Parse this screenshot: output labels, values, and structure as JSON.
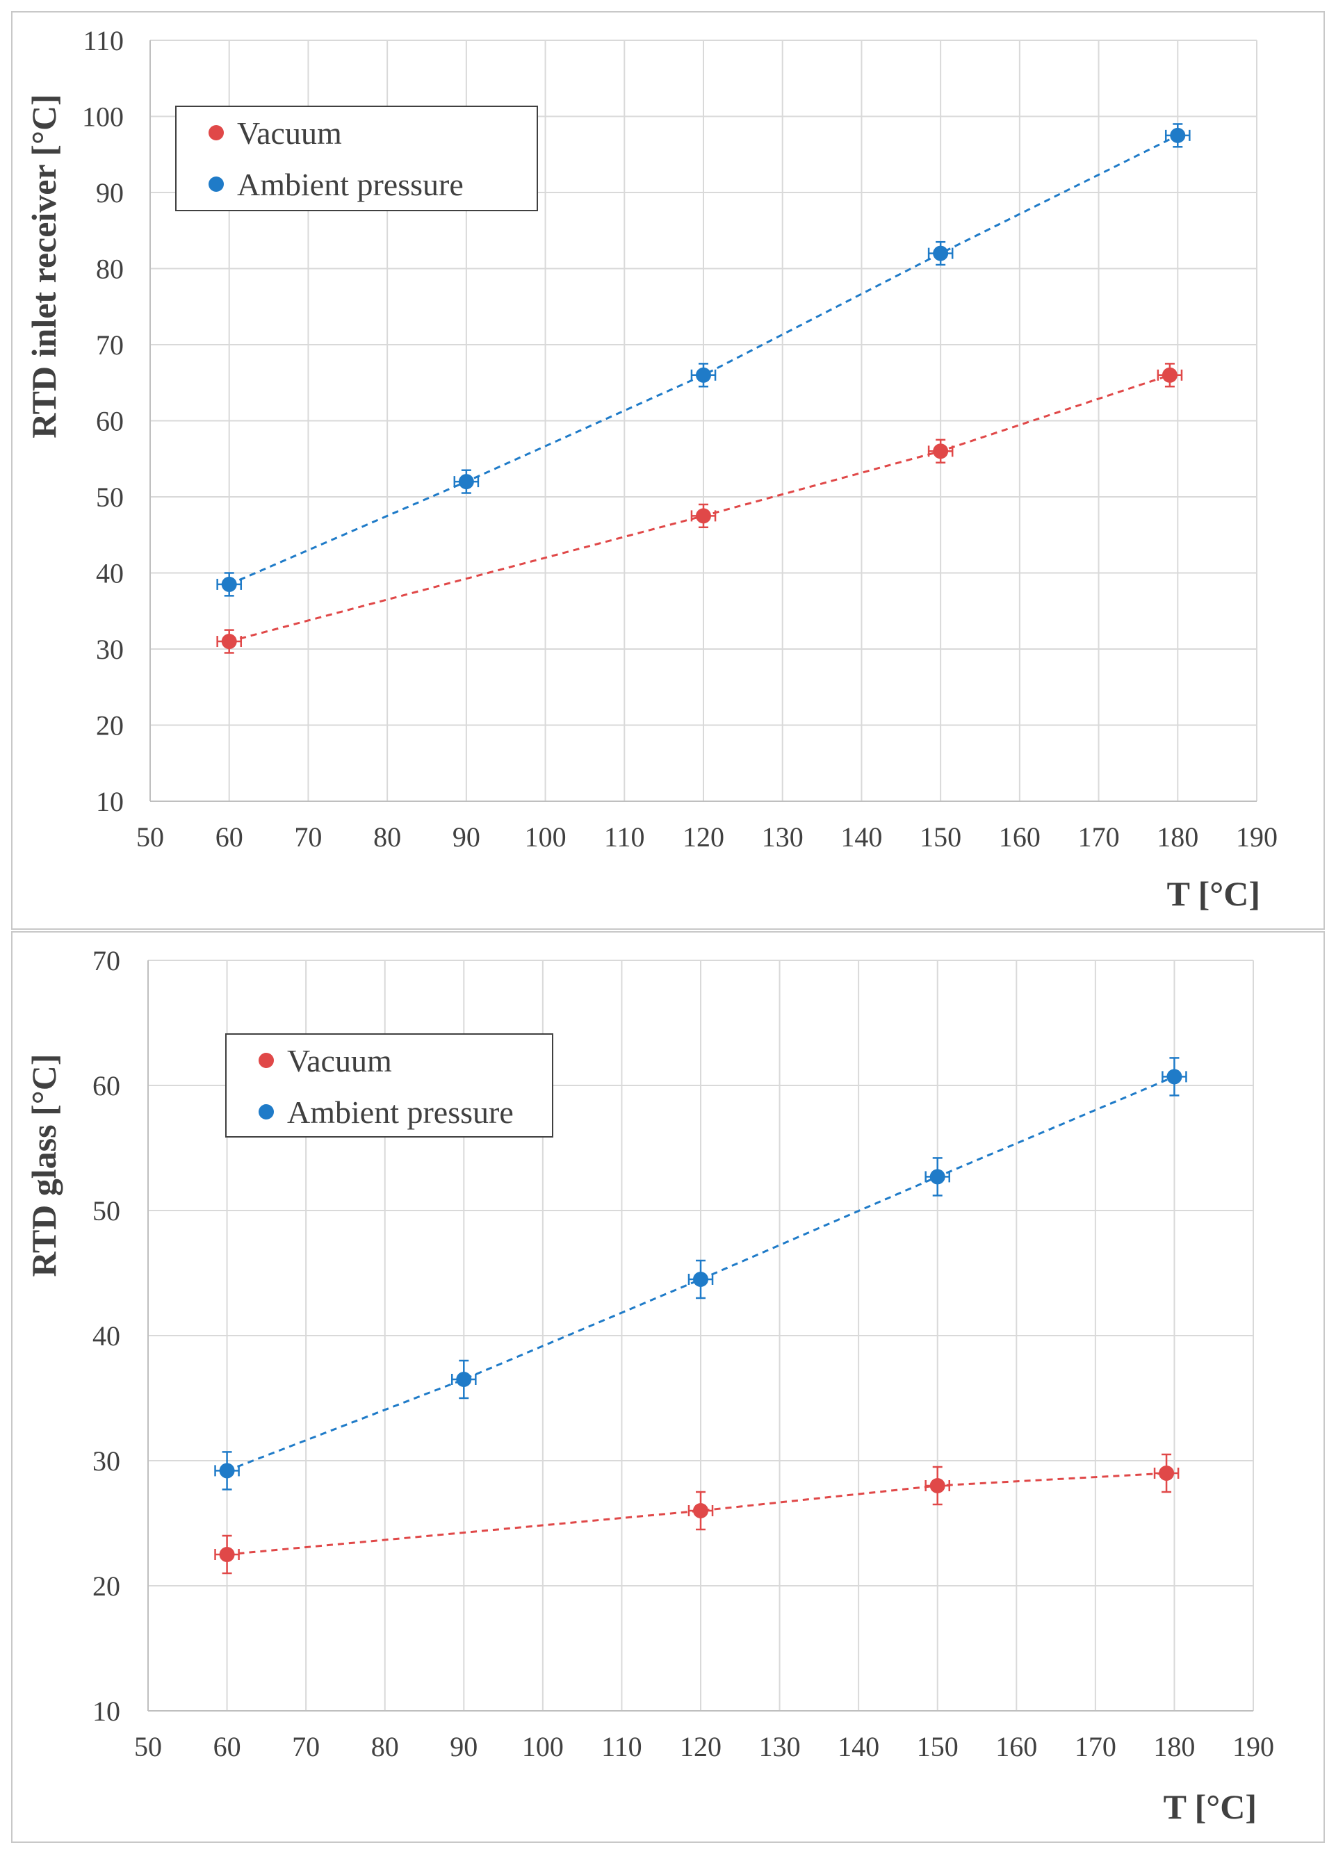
{
  "chart_data": [
    {
      "type": "scatter",
      "title": "",
      "xlabel": "T [°C]",
      "ylabel": "RTD inlet receiver [°C]",
      "xlim": [
        50,
        190
      ],
      "ylim": [
        10,
        110
      ],
      "xticks": [
        "50",
        "60",
        "70",
        "80",
        "90",
        "100",
        "110",
        "120",
        "130",
        "140",
        "150",
        "160",
        "170",
        "180",
        "190"
      ],
      "yticks": [
        "10",
        "20",
        "30",
        "40",
        "50",
        "60",
        "70",
        "80",
        "90",
        "100",
        "110"
      ],
      "grid": true,
      "legend_position": "top-left",
      "series": [
        {
          "name": "Vacuum",
          "color": "#e04848",
          "x": [
            60,
            120,
            150,
            179
          ],
          "y": [
            31,
            47.5,
            56,
            66
          ],
          "yerr": 1.5,
          "xerr": 1.5
        },
        {
          "name": "Ambient pressure",
          "color": "#1f7bc8",
          "x": [
            60,
            90,
            120,
            150,
            180
          ],
          "y": [
            38.5,
            52,
            66,
            82,
            97.5
          ],
          "yerr": 1.5,
          "xerr": 1.5
        }
      ]
    },
    {
      "type": "scatter",
      "title": "",
      "xlabel": "T [°C]",
      "ylabel": "RTD glass [°C]",
      "xlim": [
        50,
        190
      ],
      "ylim": [
        10,
        70
      ],
      "xticks": [
        "50",
        "60",
        "70",
        "80",
        "90",
        "100",
        "110",
        "120",
        "130",
        "140",
        "150",
        "160",
        "170",
        "180",
        "190"
      ],
      "yticks": [
        "10",
        "20",
        "30",
        "40",
        "50",
        "60",
        "70"
      ],
      "grid": true,
      "legend_position": "top-left",
      "series": [
        {
          "name": "Vacuum",
          "color": "#e04848",
          "x": [
            60,
            120,
            150,
            179
          ],
          "y": [
            22.5,
            26,
            28,
            29
          ],
          "yerr": 1.5,
          "xerr": 1.5
        },
        {
          "name": "Ambient pressure",
          "color": "#1f7bc8",
          "x": [
            60,
            90,
            120,
            150,
            180
          ],
          "y": [
            29.2,
            36.5,
            44.5,
            52.7,
            60.7
          ],
          "yerr": 1.5,
          "xerr": 1.5
        }
      ]
    }
  ]
}
